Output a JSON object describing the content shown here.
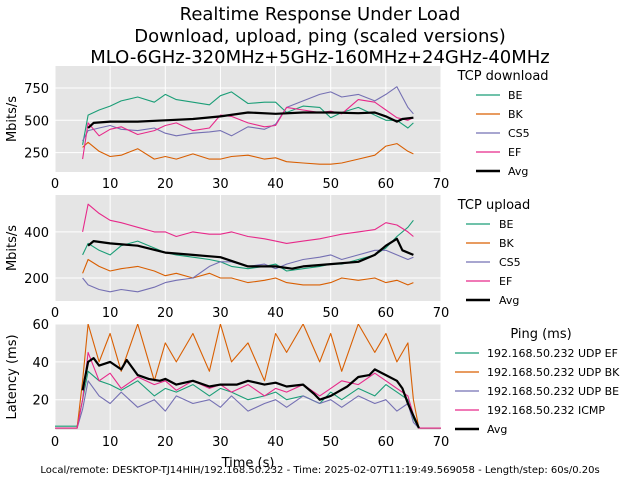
{
  "title_lines": [
    "Realtime Response Under Load",
    "Download, upload, ping (scaled versions)",
    "MLO-6GHz-320MHz+5GHz-160MHz+24GHz-40MHz"
  ],
  "footer": "Local/remote: DESKTOP-TJ14HIH/192.168.50.232 - Time: 2025-02-07T11:19:49.569058 - Length/step: 60s/0.20s",
  "colors": {
    "BE": "#1b9e77",
    "BK": "#d95f02",
    "CS5": "#7570b3",
    "EF": "#e7298a",
    "Avg": "#000000",
    "panel_bg": "#e5e5e5",
    "grid": "#ffffff"
  },
  "chart_data": [
    {
      "type": "line",
      "xlabel": "",
      "ylabel": "Mbits/s",
      "xlim": [
        0,
        70
      ],
      "ylim": [
        100,
        920
      ],
      "xticks": [
        0,
        10,
        20,
        30,
        40,
        50,
        60,
        70
      ],
      "yticks": [
        250,
        500,
        750
      ],
      "grid": true,
      "legend": {
        "title": "TCP download",
        "placement": "right"
      },
      "series": [
        {
          "name": "BE",
          "color": "#1b9e77",
          "x": [
            5,
            6,
            8,
            10,
            12,
            15,
            18,
            20,
            22,
            25,
            28,
            30,
            32,
            35,
            38,
            40,
            42,
            45,
            48,
            50,
            52,
            55,
            58,
            60,
            62,
            64,
            65
          ],
          "y": [
            310,
            540,
            580,
            610,
            650,
            680,
            640,
            700,
            660,
            640,
            620,
            690,
            720,
            630,
            640,
            640,
            560,
            610,
            600,
            520,
            560,
            600,
            540,
            500,
            500,
            440,
            480
          ]
        },
        {
          "name": "BK",
          "color": "#d95f02",
          "x": [
            5,
            6,
            8,
            10,
            12,
            15,
            18,
            20,
            22,
            25,
            28,
            30,
            32,
            35,
            38,
            40,
            42,
            45,
            48,
            50,
            52,
            55,
            58,
            60,
            62,
            64,
            65
          ],
          "y": [
            290,
            330,
            260,
            220,
            230,
            280,
            200,
            220,
            200,
            240,
            200,
            200,
            220,
            230,
            200,
            210,
            180,
            170,
            160,
            160,
            170,
            200,
            230,
            300,
            320,
            260,
            240
          ]
        },
        {
          "name": "CS5",
          "color": "#7570b3",
          "x": [
            5,
            6,
            8,
            10,
            12,
            15,
            18,
            20,
            22,
            25,
            28,
            30,
            32,
            35,
            38,
            40,
            42,
            45,
            48,
            50,
            52,
            55,
            58,
            60,
            62,
            64,
            65
          ],
          "y": [
            340,
            420,
            440,
            460,
            430,
            420,
            440,
            400,
            380,
            400,
            410,
            420,
            380,
            450,
            430,
            470,
            600,
            650,
            700,
            720,
            680,
            700,
            650,
            700,
            760,
            600,
            550
          ]
        },
        {
          "name": "EF",
          "color": "#e7298a",
          "x": [
            5,
            6,
            8,
            10,
            12,
            15,
            18,
            20,
            22,
            25,
            28,
            30,
            32,
            35,
            38,
            40,
            42,
            45,
            48,
            50,
            52,
            55,
            58,
            60,
            62,
            64,
            65
          ],
          "y": [
            200,
            480,
            380,
            430,
            450,
            390,
            420,
            460,
            480,
            420,
            440,
            540,
            530,
            480,
            450,
            460,
            600,
            580,
            560,
            570,
            550,
            660,
            640,
            580,
            520,
            500,
            520
          ]
        },
        {
          "name": "Avg",
          "color": "#000000",
          "x": [
            6,
            7,
            10,
            15,
            20,
            25,
            30,
            35,
            40,
            45,
            50,
            55,
            58,
            60,
            62,
            63,
            65
          ],
          "y": [
            440,
            480,
            490,
            490,
            500,
            510,
            530,
            560,
            550,
            560,
            560,
            555,
            560,
            530,
            490,
            510,
            520
          ]
        }
      ]
    },
    {
      "type": "line",
      "xlabel": "",
      "ylabel": "Mbits/s",
      "xlim": [
        0,
        70
      ],
      "ylim": [
        100,
        560
      ],
      "xticks": [
        0,
        10,
        20,
        30,
        40,
        50,
        60,
        70
      ],
      "yticks": [
        200,
        400
      ],
      "grid": true,
      "legend": {
        "title": "TCP upload",
        "placement": "right"
      },
      "series": [
        {
          "name": "BE",
          "color": "#1b9e77",
          "x": [
            5,
            6,
            8,
            10,
            12,
            15,
            18,
            20,
            22,
            25,
            28,
            30,
            32,
            35,
            38,
            40,
            42,
            45,
            48,
            50,
            52,
            55,
            58,
            60,
            62,
            64,
            65
          ],
          "y": [
            300,
            350,
            320,
            300,
            340,
            360,
            330,
            310,
            300,
            290,
            280,
            270,
            250,
            240,
            250,
            260,
            230,
            240,
            250,
            260,
            260,
            280,
            300,
            330,
            380,
            420,
            450
          ]
        },
        {
          "name": "BK",
          "color": "#d95f02",
          "x": [
            5,
            6,
            8,
            10,
            12,
            15,
            18,
            20,
            22,
            25,
            28,
            30,
            32,
            35,
            38,
            40,
            42,
            45,
            48,
            50,
            52,
            55,
            58,
            60,
            62,
            64,
            65
          ],
          "y": [
            220,
            280,
            250,
            230,
            240,
            250,
            230,
            210,
            220,
            200,
            220,
            200,
            200,
            180,
            190,
            200,
            180,
            170,
            170,
            180,
            200,
            190,
            200,
            180,
            190,
            170,
            180
          ]
        },
        {
          "name": "CS5",
          "color": "#7570b3",
          "x": [
            5,
            6,
            8,
            10,
            12,
            15,
            18,
            20,
            22,
            25,
            28,
            30,
            32,
            35,
            38,
            40,
            42,
            45,
            48,
            50,
            52,
            55,
            58,
            60,
            62,
            64,
            65
          ],
          "y": [
            200,
            170,
            150,
            140,
            150,
            140,
            160,
            180,
            190,
            200,
            250,
            270,
            270,
            250,
            260,
            240,
            260,
            280,
            290,
            300,
            280,
            300,
            320,
            320,
            300,
            280,
            290
          ]
        },
        {
          "name": "EF",
          "color": "#e7298a",
          "x": [
            5,
            6,
            8,
            10,
            12,
            15,
            18,
            20,
            22,
            25,
            28,
            30,
            32,
            35,
            38,
            40,
            42,
            45,
            48,
            50,
            52,
            55,
            58,
            60,
            62,
            64,
            65
          ],
          "y": [
            400,
            520,
            480,
            450,
            440,
            420,
            400,
            400,
            380,
            400,
            390,
            390,
            400,
            380,
            370,
            360,
            350,
            360,
            370,
            380,
            390,
            400,
            410,
            440,
            430,
            400,
            380
          ]
        },
        {
          "name": "Avg",
          "color": "#000000",
          "x": [
            6,
            7,
            10,
            15,
            20,
            25,
            30,
            35,
            40,
            43,
            45,
            50,
            55,
            58,
            60,
            62,
            63,
            65
          ],
          "y": [
            340,
            360,
            350,
            340,
            310,
            300,
            290,
            250,
            250,
            240,
            250,
            260,
            270,
            300,
            340,
            370,
            320,
            300
          ]
        }
      ]
    },
    {
      "type": "line",
      "xlabel": "Time (s)",
      "ylabel": "Latency (ms)",
      "xlim": [
        0,
        70
      ],
      "ylim": [
        4,
        60
      ],
      "xticks": [
        0,
        10,
        20,
        30,
        40,
        50,
        60,
        70
      ],
      "yticks": [
        20,
        40,
        60
      ],
      "grid": true,
      "legend": {
        "title": "Ping (ms)",
        "placement": "right"
      },
      "series": [
        {
          "name": "192.168.50.232 UDP EF",
          "color": "#1b9e77",
          "x": [
            0,
            4,
            5,
            6,
            8,
            10,
            12,
            15,
            18,
            20,
            22,
            25,
            28,
            30,
            32,
            35,
            38,
            40,
            42,
            45,
            48,
            50,
            52,
            55,
            58,
            60,
            62,
            64,
            65,
            66,
            70
          ],
          "y": [
            6,
            6,
            20,
            35,
            30,
            28,
            25,
            30,
            22,
            26,
            24,
            28,
            22,
            26,
            24,
            20,
            22,
            24,
            20,
            22,
            18,
            24,
            20,
            26,
            22,
            28,
            24,
            20,
            10,
            5,
            5
          ]
        },
        {
          "name": "192.168.50.232 UDP BK",
          "color": "#d95f02",
          "x": [
            0,
            4,
            5,
            6,
            8,
            10,
            12,
            15,
            18,
            20,
            22,
            25,
            28,
            30,
            32,
            35,
            38,
            40,
            42,
            45,
            48,
            50,
            52,
            55,
            58,
            60,
            62,
            64,
            65,
            66,
            70
          ],
          "y": [
            5,
            5,
            30,
            60,
            40,
            55,
            35,
            60,
            30,
            50,
            40,
            55,
            35,
            60,
            40,
            50,
            30,
            55,
            45,
            60,
            40,
            55,
            35,
            60,
            45,
            55,
            40,
            50,
            20,
            5,
            5
          ]
        },
        {
          "name": "192.168.50.232 UDP BE",
          "color": "#7570b3",
          "x": [
            0,
            4,
            5,
            6,
            8,
            10,
            12,
            15,
            18,
            20,
            22,
            25,
            28,
            30,
            32,
            35,
            38,
            40,
            42,
            45,
            48,
            50,
            52,
            55,
            58,
            60,
            62,
            64,
            65,
            66,
            70
          ],
          "y": [
            5,
            5,
            15,
            30,
            22,
            18,
            24,
            16,
            20,
            14,
            22,
            18,
            20,
            16,
            22,
            14,
            18,
            20,
            16,
            22,
            18,
            20,
            16,
            22,
            18,
            20,
            14,
            18,
            8,
            5,
            5
          ]
        },
        {
          "name": "192.168.50.232 ICMP",
          "color": "#e7298a",
          "x": [
            0,
            4,
            5,
            6,
            8,
            10,
            12,
            15,
            18,
            20,
            22,
            25,
            28,
            30,
            32,
            35,
            38,
            40,
            42,
            45,
            48,
            50,
            52,
            55,
            58,
            60,
            62,
            64,
            65,
            66,
            70
          ],
          "y": [
            5,
            5,
            20,
            45,
            30,
            34,
            26,
            32,
            28,
            30,
            25,
            30,
            26,
            28,
            24,
            28,
            22,
            26,
            24,
            28,
            22,
            26,
            30,
            28,
            34,
            30,
            26,
            22,
            12,
            5,
            5
          ]
        },
        {
          "name": "Avg",
          "color": "#000000",
          "x": [
            5,
            6,
            7,
            8,
            10,
            12,
            13,
            15,
            17,
            19,
            20,
            22,
            25,
            28,
            30,
            33,
            35,
            38,
            40,
            42,
            45,
            47,
            48,
            50,
            53,
            55,
            57,
            58,
            60,
            62,
            63,
            64,
            66
          ],
          "y": [
            25,
            40,
            42,
            38,
            40,
            36,
            41,
            33,
            31,
            30,
            31,
            28,
            30,
            27,
            28,
            28,
            30,
            28,
            29,
            27,
            28,
            23,
            20,
            22,
            27,
            32,
            33,
            36,
            33,
            30,
            26,
            18,
            5
          ]
        }
      ]
    }
  ]
}
